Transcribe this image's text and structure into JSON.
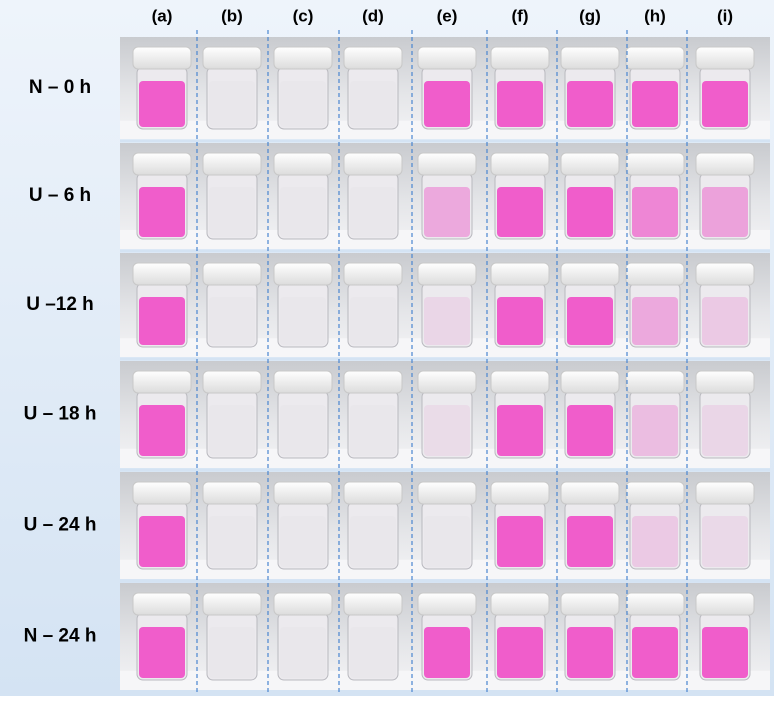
{
  "columns": [
    "(a)",
    "(b)",
    "(c)",
    "(d)",
    "(e)",
    "(f)",
    "(g)",
    "(h)",
    "(i)"
  ],
  "rows": [
    "N – 0 h",
    "U – 6 h",
    "U –12 h",
    "U – 18 h",
    "U – 24 h",
    "N – 24 h"
  ]
}
